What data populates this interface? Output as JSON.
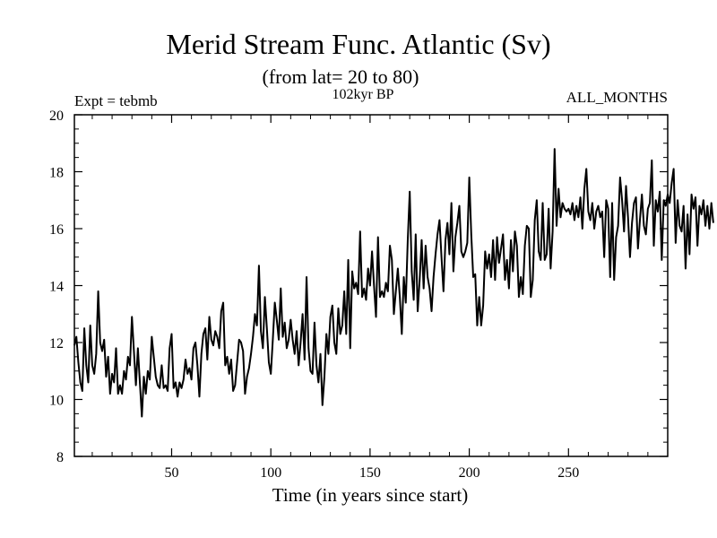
{
  "chart_data": {
    "type": "line",
    "title": "Merid Stream Func. Atlantic (Sv)",
    "subtitle": "(from lat= 20 to 80)",
    "left_label": "Expt = tebmb",
    "center_label": "102kyr BP",
    "right_label": "ALL_MONTHS",
    "xlabel": "Time (in years since start)",
    "ylabel": "",
    "xlim": [
      1,
      300
    ],
    "ylim": [
      8,
      20
    ],
    "x_ticks": [
      50,
      100,
      150,
      200,
      250
    ],
    "y_ticks": [
      8,
      10,
      12,
      14,
      16,
      18,
      20
    ],
    "series": [
      {
        "name": "Merid Stream Func. Atlantic",
        "x_start": 1,
        "x_step": 1,
        "values": [
          11.9,
          12.2,
          11.3,
          10.6,
          10.3,
          12.5,
          11.2,
          10.6,
          12.6,
          11.2,
          10.9,
          11.6,
          13.8,
          12.0,
          11.7,
          12.1,
          10.8,
          11.5,
          10.2,
          10.9,
          10.6,
          11.8,
          10.2,
          10.5,
          10.2,
          11.0,
          10.7,
          11.5,
          11.2,
          12.9,
          11.7,
          10.5,
          11.8,
          10.6,
          9.4,
          10.8,
          10.2,
          11.0,
          10.7,
          12.2,
          11.5,
          10.8,
          10.5,
          10.4,
          11.2,
          10.4,
          10.5,
          10.3,
          11.8,
          12.3,
          10.4,
          10.6,
          10.1,
          10.6,
          10.4,
          10.7,
          11.4,
          10.9,
          11.1,
          10.7,
          11.8,
          12.0,
          11.2,
          10.1,
          11.6,
          12.3,
          12.5,
          11.4,
          12.9,
          12.1,
          11.9,
          12.4,
          12.2,
          11.8,
          13.1,
          13.4,
          11.2,
          11.5,
          10.9,
          11.4,
          10.3,
          10.5,
          11.3,
          12.1,
          12.0,
          11.7,
          10.2,
          10.8,
          11.1,
          11.6,
          12.2,
          13.0,
          12.6,
          14.7,
          12.4,
          11.8,
          13.6,
          12.5,
          11.3,
          10.9,
          12.1,
          13.4,
          12.8,
          12.1,
          13.9,
          12.2,
          12.7,
          11.8,
          12.1,
          12.8,
          12.1,
          11.6,
          12.4,
          11.2,
          12.0,
          13.0,
          11.4,
          14.3,
          11.8,
          11.0,
          10.9,
          12.7,
          11.2,
          10.6,
          11.6,
          9.8,
          10.8,
          12.3,
          11.6,
          12.9,
          13.3,
          12.0,
          11.6,
          13.2,
          12.3,
          12.6,
          13.8,
          12.3,
          14.9,
          11.8,
          14.5,
          13.9,
          14.1,
          13.7,
          15.9,
          13.6,
          13.9,
          13.5,
          14.6,
          14.0,
          15.2,
          14.0,
          12.9,
          15.7,
          13.6,
          13.8,
          13.6,
          14.1,
          13.8,
          15.4,
          14.9,
          13.0,
          13.8,
          14.6,
          13.6,
          12.3,
          14.3,
          13.4,
          15.6,
          17.3,
          14.5,
          13.5,
          15.8,
          13.1,
          14.2,
          15.6,
          13.9,
          15.4,
          14.3,
          13.9,
          13.1,
          14.3,
          15.1,
          15.8,
          16.3,
          15.0,
          13.8,
          15.6,
          16.2,
          15.1,
          16.9,
          14.5,
          15.7,
          16.2,
          16.8,
          15.2,
          15.0,
          15.2,
          15.5,
          17.8,
          15.8,
          14.3,
          14.4,
          12.6,
          13.6,
          12.6,
          13.3,
          15.2,
          14.6,
          15.1,
          14.3,
          15.6,
          14.2,
          15.7,
          14.8,
          15.3,
          15.8,
          14.2,
          14.9,
          13.9,
          15.6,
          14.5,
          15.9,
          15.4,
          13.6,
          14.3,
          13.7,
          15.4,
          16.1,
          16.0,
          13.6,
          14.2,
          16.3,
          17.0,
          15.2,
          14.9,
          16.9,
          14.9,
          15.1,
          16.7,
          14.6,
          15.9,
          18.8,
          16.1,
          17.4,
          16.4,
          16.9,
          16.7,
          16.6,
          16.7,
          16.5,
          16.9,
          16.3,
          16.8,
          16.4,
          17.1,
          16.0,
          17.4,
          18.1,
          16.6,
          16.3,
          16.9,
          16.0,
          16.6,
          16.8,
          16.4,
          16.6,
          15.0,
          17.0,
          16.7,
          14.3,
          16.9,
          14.2,
          15.7,
          16.1,
          17.8,
          17.0,
          15.9,
          17.5,
          16.4,
          15.0,
          16.2,
          16.9,
          17.1,
          15.3,
          16.3,
          17.2,
          16.1,
          15.8,
          16.7,
          16.9,
          18.4,
          15.4,
          17.0,
          16.6,
          17.3,
          14.9,
          17.0,
          16.8,
          17.2,
          16.9,
          17.6,
          18.1,
          15.5,
          17.0,
          16.1,
          15.9,
          16.8,
          14.6,
          16.5,
          15.1,
          17.2,
          16.7,
          17.1,
          15.4,
          16.8,
          16.5,
          17.0,
          16.1,
          16.8,
          16.0,
          16.9,
          16.2
        ]
      }
    ]
  }
}
